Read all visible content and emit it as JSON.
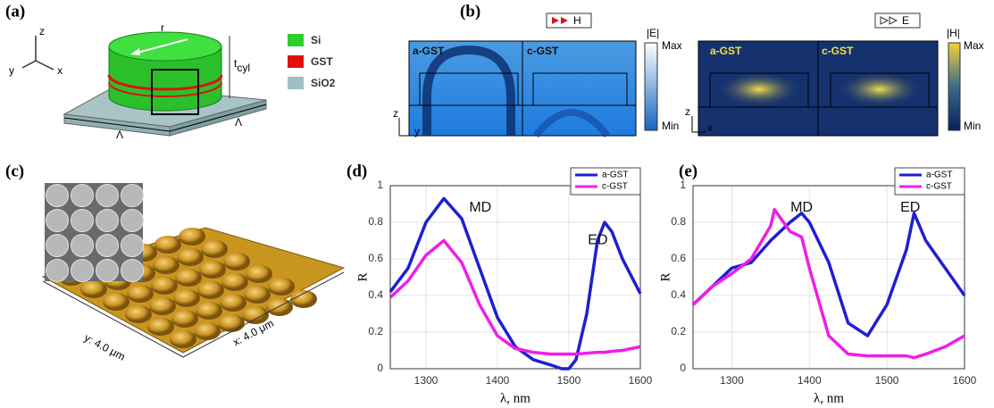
{
  "panel_a": {
    "label": "(a)",
    "axes": [
      "z",
      "y",
      "x"
    ],
    "radius": "r",
    "height": "t",
    "height_sub": "cyl",
    "period": [
      "Λ",
      "Λ"
    ],
    "legend": [
      "Si",
      "GST",
      "SiO2"
    ]
  },
  "panel_b": {
    "label": "(b)",
    "left_field": "H",
    "right_field": "E",
    "left_bar": "|E|",
    "right_bar": "|H|",
    "bar_ticks": [
      "Max",
      "Min",
      "Max",
      "Min"
    ],
    "phases": [
      "a-GST",
      "c-GST",
      "a-GST",
      "c-GST"
    ],
    "axes": [
      "z",
      "y",
      "z",
      "x"
    ]
  },
  "panel_c": {
    "label": "(c)",
    "y_scale": "y: 4.0 μm",
    "x_scale": "x: 4.0 μm"
  },
  "chart_data": [
    {
      "type": "line",
      "panel": "(d)",
      "x_label": "λ, nm",
      "y_label": "R",
      "x": [
        1250,
        1275,
        1300,
        1325,
        1350,
        1375,
        1400,
        1425,
        1450,
        1475,
        1490,
        1500,
        1510,
        1525,
        1540,
        1550,
        1560,
        1575,
        1600
      ],
      "series": [
        {
          "name": "a-GST",
          "color": "#1f1fd0",
          "values": [
            0.42,
            0.55,
            0.8,
            0.93,
            0.82,
            0.55,
            0.28,
            0.12,
            0.05,
            0.02,
            0.0,
            0.0,
            0.05,
            0.3,
            0.7,
            0.8,
            0.75,
            0.6,
            0.41
          ]
        },
        {
          "name": "c-GST",
          "color": "#ee1ee8",
          "values": [
            0.39,
            0.48,
            0.62,
            0.7,
            0.58,
            0.35,
            0.18,
            0.11,
            0.09,
            0.08,
            0.08,
            0.08,
            0.08,
            0.085,
            0.09,
            0.09,
            0.095,
            0.1,
            0.12
          ]
        }
      ],
      "annotations": [
        "MD",
        "ED"
      ],
      "xlim": [
        1250,
        1600
      ],
      "xticks": [
        1300,
        1400,
        1500,
        1600
      ],
      "ylim": [
        0,
        1
      ],
      "yticks": [
        0,
        0.2,
        0.4,
        0.6,
        0.8,
        1
      ],
      "grid": true,
      "legend": "upper right"
    },
    {
      "type": "line",
      "panel": "(e)",
      "x_label": "λ, nm",
      "y_label": "R",
      "x": [
        1250,
        1275,
        1300,
        1325,
        1350,
        1355,
        1375,
        1390,
        1400,
        1425,
        1450,
        1475,
        1500,
        1525,
        1535,
        1550,
        1575,
        1600
      ],
      "series": [
        {
          "name": "a-GST",
          "color": "#1f1fd0",
          "values": [
            0.35,
            0.45,
            0.55,
            0.58,
            0.7,
            0.72,
            0.8,
            0.85,
            0.8,
            0.58,
            0.25,
            0.18,
            0.35,
            0.65,
            0.85,
            0.7,
            0.55,
            0.4
          ]
        },
        {
          "name": "c-GST",
          "color": "#ee1ee8",
          "values": [
            0.35,
            0.45,
            0.52,
            0.6,
            0.78,
            0.87,
            0.75,
            0.72,
            0.55,
            0.18,
            0.08,
            0.07,
            0.07,
            0.07,
            0.06,
            0.08,
            0.12,
            0.18
          ]
        }
      ],
      "annotations": [
        "MD",
        "ED"
      ],
      "xlim": [
        1250,
        1600
      ],
      "xticks": [
        1300,
        1400,
        1500,
        1600
      ],
      "ylim": [
        0,
        1
      ],
      "yticks": [
        0,
        0.2,
        0.4,
        0.6,
        0.8,
        1
      ],
      "grid": true,
      "legend": "upper right"
    }
  ]
}
